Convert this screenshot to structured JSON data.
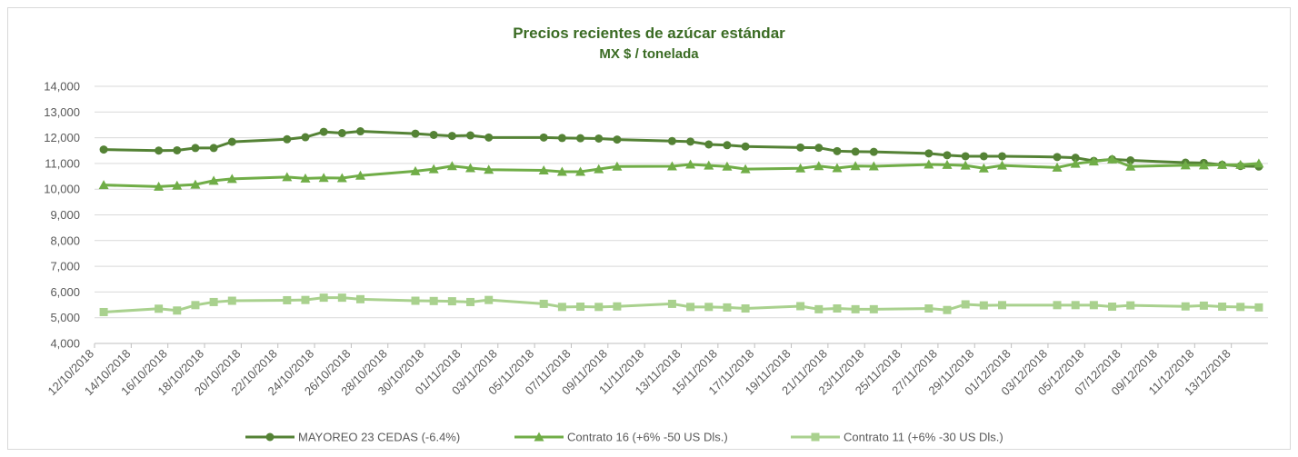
{
  "chart_data": {
    "type": "line",
    "title": "Precios recientes de azúcar estándar",
    "subtitle": "MX $ / tonelada",
    "x": [
      "12/10/2018",
      "15/10/2018",
      "16/10/2018",
      "17/10/2018",
      "18/10/2018",
      "19/10/2018",
      "22/10/2018",
      "23/10/2018",
      "24/10/2018",
      "25/10/2018",
      "26/10/2018",
      "29/10/2018",
      "30/10/2018",
      "31/10/2018",
      "01/11/2018",
      "02/11/2018",
      "05/11/2018",
      "06/11/2018",
      "07/11/2018",
      "08/11/2018",
      "09/11/2018",
      "12/11/2018",
      "13/11/2018",
      "14/11/2018",
      "15/11/2018",
      "16/11/2018",
      "19/11/2018",
      "20/11/2018",
      "21/11/2018",
      "22/11/2018",
      "23/11/2018",
      "26/11/2018",
      "27/11/2018",
      "28/11/2018",
      "29/11/2018",
      "30/11/2018",
      "03/12/2018",
      "04/12/2018",
      "05/12/2018",
      "06/12/2018",
      "07/12/2018",
      "10/12/2018",
      "11/12/2018",
      "12/12/2018",
      "13/12/2018",
      "14/12/2018"
    ],
    "series": [
      {
        "name": "MAYOREO 23 CEDAS (-6.4%)",
        "color": "#548235",
        "marker": "circle",
        "values": [
          11540,
          11500,
          11510,
          11600,
          11600,
          11840,
          11940,
          12020,
          12230,
          12180,
          12250,
          12160,
          12110,
          12070,
          12090,
          12010,
          12010,
          11990,
          11980,
          11970,
          11930,
          11870,
          11850,
          11740,
          11710,
          11660,
          11620,
          11610,
          11480,
          11460,
          11450,
          11390,
          11320,
          11280,
          11280,
          11280,
          11250,
          11220,
          11100,
          11160,
          11120,
          11030,
          11020,
          10950,
          10900,
          10880
        ]
      },
      {
        "name": "Contrato 16 (+6% -50 US Dls.)",
        "color": "#70ad47",
        "marker": "triangle",
        "values": [
          10160,
          10100,
          10140,
          10180,
          10330,
          10400,
          10470,
          10420,
          10440,
          10430,
          10530,
          10700,
          10780,
          10900,
          10820,
          10760,
          10730,
          10680,
          10680,
          10780,
          10880,
          10890,
          10960,
          10920,
          10880,
          10780,
          10810,
          10900,
          10820,
          10900,
          10890,
          10960,
          10950,
          10920,
          10810,
          10920,
          10840,
          10990,
          11080,
          11160,
          10880,
          10930,
          10930,
          10950,
          10950,
          11000
        ]
      },
      {
        "name": "Contrato 11 (+6% -30 US Dls.)",
        "color": "#a9d18e",
        "marker": "square",
        "values": [
          5220,
          5350,
          5280,
          5490,
          5610,
          5660,
          5680,
          5690,
          5780,
          5780,
          5720,
          5660,
          5650,
          5640,
          5610,
          5690,
          5540,
          5420,
          5430,
          5420,
          5440,
          5540,
          5420,
          5420,
          5400,
          5360,
          5450,
          5330,
          5360,
          5330,
          5330,
          5360,
          5300,
          5520,
          5480,
          5490,
          5490,
          5490,
          5490,
          5430,
          5480,
          5440,
          5470,
          5430,
          5420,
          5400
        ]
      }
    ],
    "xlim": [
      "12/10/2018",
      "14/12/2018"
    ],
    "xticks": [
      "12/10/2018",
      "14/10/2018",
      "16/10/2018",
      "18/10/2018",
      "20/10/2018",
      "22/10/2018",
      "24/10/2018",
      "26/10/2018",
      "28/10/2018",
      "30/10/2018",
      "01/11/2018",
      "03/11/2018",
      "05/11/2018",
      "07/11/2018",
      "09/11/2018",
      "11/11/2018",
      "13/11/2018",
      "15/11/2018",
      "17/11/2018",
      "19/11/2018",
      "21/11/2018",
      "23/11/2018",
      "25/11/2018",
      "27/11/2018",
      "29/11/2018",
      "01/12/2018",
      "03/12/2018",
      "05/12/2018",
      "07/12/2018",
      "09/12/2018",
      "11/12/2018",
      "13/12/2018"
    ],
    "ylim": [
      4000,
      14000
    ],
    "yticks": [
      {
        "value": 4000,
        "label": "4,000"
      },
      {
        "value": 5000,
        "label": "5,000"
      },
      {
        "value": 6000,
        "label": "6,000"
      },
      {
        "value": 7000,
        "label": "7,000"
      },
      {
        "value": 8000,
        "label": "8,000"
      },
      {
        "value": 9000,
        "label": "9,000"
      },
      {
        "value": 10000,
        "label": "10,000"
      },
      {
        "value": 11000,
        "label": "11,000"
      },
      {
        "value": 12000,
        "label": "12,000"
      },
      {
        "value": 13000,
        "label": "13,000"
      },
      {
        "value": 14000,
        "label": "14,000"
      }
    ],
    "grid": true
  }
}
